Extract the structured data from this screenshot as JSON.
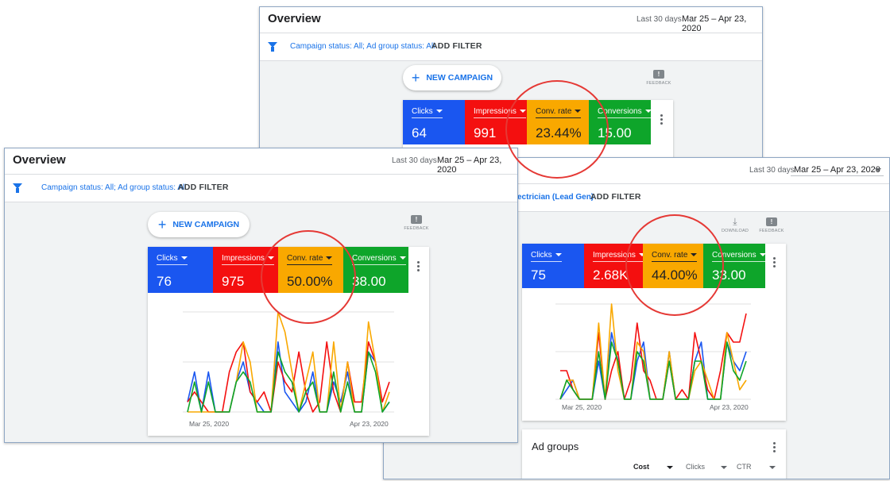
{
  "colors": {
    "clicks": "#1a56f0",
    "impressions": "#f40f0f",
    "conv_rate": "#f9a800",
    "conversions": "#0ea52a",
    "link": "#1a73e8",
    "annotation": "#e53935"
  },
  "icons": [
    "filter-icon",
    "plus-icon",
    "feedback-icon",
    "download-icon",
    "caret-down-icon",
    "more-vert-icon"
  ],
  "window_top": {
    "title": "Overview",
    "range_label": "Last 30 days",
    "date_range": "Mar 25 – Apr 23, 2020",
    "filter_status": "Campaign status: All; Ad group status: All",
    "add_filter": "ADD FILTER",
    "new_campaign": "NEW CAMPAIGN",
    "feedback": "FEEDBACK",
    "metrics": [
      {
        "label": "Clicks",
        "value": "64"
      },
      {
        "label": "Impressions",
        "value": "991"
      },
      {
        "label": "Conv. rate",
        "value": "23.44%"
      },
      {
        "label": "Conversions",
        "value": "15.00"
      }
    ]
  },
  "window_front": {
    "title": "Overview",
    "range_label": "Last 30 days",
    "date_range": "Mar 25 – Apr 23, 2020",
    "filter_status": "Campaign status: All; Ad group status: All",
    "add_filter": "ADD FILTER",
    "new_campaign": "NEW CAMPAIGN",
    "feedback": "FEEDBACK",
    "metrics": [
      {
        "label": "Clicks",
        "value": "76"
      },
      {
        "label": "Impressions",
        "value": "975"
      },
      {
        "label": "Conv. rate",
        "value": "50.00%"
      },
      {
        "label": "Conversions",
        "value": "38.00"
      }
    ],
    "x_start": "Mar 25, 2020",
    "x_end": "Apr 23, 2020"
  },
  "window_right": {
    "range_label": "Last 30 days",
    "date_range": "Mar 25 – Apr 23, 2020",
    "filter_status": "ectrician (Lead Gen)",
    "add_filter": "ADD FILTER",
    "download": "DOWNLOAD",
    "feedback": "FEEDBACK",
    "metrics": [
      {
        "label": "Clicks",
        "value": "75"
      },
      {
        "label": "Impressions",
        "value": "2.68K"
      },
      {
        "label": "Conv. rate",
        "value": "44.00%"
      },
      {
        "label": "Conversions",
        "value": "33.00"
      }
    ],
    "x_start": "Mar 25, 2020",
    "x_end": "Apr 23, 2020",
    "ad_groups_title": "Ad groups",
    "ad_groups_columns": [
      "Cost",
      "Clicks",
      "CTR"
    ]
  },
  "chart_data": [
    {
      "type": "line",
      "x_start": "Mar 25, 2020",
      "x_end": "Apr 23, 2020",
      "series": [
        {
          "name": "Clicks",
          "values": [
            1,
            4,
            0,
            4,
            0,
            0,
            0,
            3,
            5,
            2,
            1,
            0,
            0,
            7,
            2,
            1,
            0,
            1,
            4,
            0,
            0,
            3,
            1,
            4,
            0,
            0,
            6,
            5,
            0,
            1
          ]
        },
        {
          "name": "Impressions",
          "values": [
            1,
            2,
            1,
            0,
            0,
            0,
            4,
            6,
            7,
            2,
            1,
            2,
            0,
            5,
            3,
            2,
            6,
            2,
            0,
            1,
            7,
            2,
            0,
            5,
            1,
            1,
            7,
            5,
            1,
            3
          ]
        },
        {
          "name": "Conv. rate",
          "values": [
            0,
            0,
            0,
            0,
            0,
            0,
            0,
            3,
            7,
            5,
            0,
            0,
            0,
            10,
            8,
            4,
            0,
            3,
            6,
            0,
            0,
            7,
            0,
            5,
            0,
            0,
            9,
            5,
            0,
            2
          ]
        },
        {
          "name": "Conversions",
          "values": [
            0,
            3,
            0,
            3,
            0,
            0,
            0,
            3,
            4,
            3,
            0,
            0,
            0,
            6,
            4,
            3,
            0,
            2,
            3,
            0,
            0,
            4,
            0,
            3,
            0,
            0,
            6,
            4,
            0,
            1
          ]
        }
      ]
    },
    {
      "type": "line",
      "x_start": "Mar 25, 2020",
      "x_end": "Apr 23, 2020",
      "series": [
        {
          "name": "Clicks",
          "values": [
            0,
            1,
            2,
            0,
            0,
            0,
            4,
            0,
            7,
            4,
            0,
            0,
            4,
            6,
            0,
            0,
            0,
            5,
            0,
            0,
            0,
            4,
            6,
            0,
            0,
            0,
            6,
            4,
            3,
            5
          ]
        },
        {
          "name": "Impressions",
          "values": [
            3,
            3,
            1,
            0,
            0,
            0,
            7,
            0,
            3,
            5,
            0,
            2,
            8,
            3,
            2,
            0,
            0,
            4,
            0,
            1,
            0,
            7,
            4,
            1,
            0,
            3,
            7,
            6,
            6,
            9
          ]
        },
        {
          "name": "Conv. rate",
          "values": [
            0,
            2,
            2,
            0,
            0,
            0,
            8,
            0,
            10,
            3,
            0,
            0,
            6,
            5,
            0,
            0,
            0,
            5,
            0,
            0,
            0,
            3,
            4,
            2,
            0,
            0,
            7,
            4,
            1,
            2
          ]
        },
        {
          "name": "Conversions",
          "values": [
            0,
            2,
            1,
            0,
            0,
            0,
            5,
            0,
            6,
            4,
            0,
            0,
            5,
            4,
            0,
            0,
            0,
            4,
            0,
            0,
            0,
            4,
            4,
            0,
            0,
            0,
            6,
            3,
            2,
            4
          ]
        }
      ]
    }
  ]
}
